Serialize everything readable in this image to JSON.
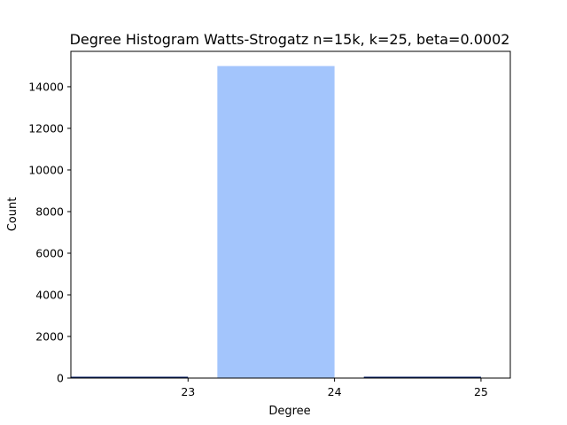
{
  "chart_data": {
    "type": "bar",
    "title": "Degree Histogram Watts-Strogatz n=15k, k=25, beta=0.0002",
    "xlabel": "Degree",
    "ylabel": "Count",
    "xlim": [
      22.2,
      25.2
    ],
    "ylim": [
      0,
      15700
    ],
    "xticks": [
      23,
      24,
      25
    ],
    "yticks": [
      0,
      2000,
      4000,
      6000,
      8000,
      10000,
      12000,
      14000
    ],
    "bars": [
      {
        "x0": 22.2,
        "x1": 23.0,
        "value": 3,
        "color": "#001a66"
      },
      {
        "x0": 23.2,
        "x1": 24.0,
        "value": 14994,
        "color": "#a3c5fc"
      },
      {
        "x0": 24.2,
        "x1": 25.0,
        "value": 3,
        "color": "#001a66"
      }
    ],
    "grid": false
  }
}
